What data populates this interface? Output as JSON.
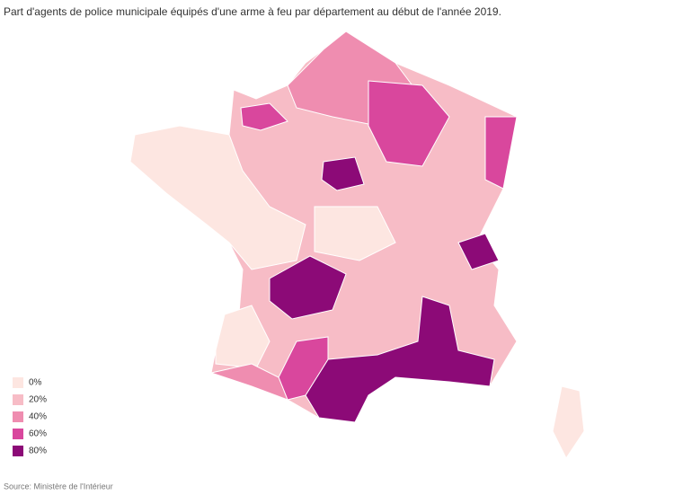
{
  "title": "Part d'agents de police municipale équipés d'une arme à feu par département au début de l'année 2019.",
  "legend": [
    {
      "label": "0%",
      "color": "#fde6e1"
    },
    {
      "label": "20%",
      "color": "#f7bcc6"
    },
    {
      "label": "40%",
      "color": "#ef8db0"
    },
    {
      "label": "60%",
      "color": "#d9479d"
    },
    {
      "label": "80%",
      "color": "#8c0a77"
    }
  ],
  "source": "Source: Ministère de l'Intérieur"
}
